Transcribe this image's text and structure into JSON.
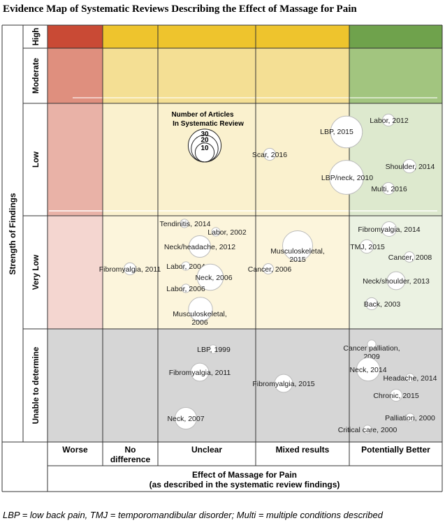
{
  "chart_data": {
    "type": "scatter",
    "title": "Evidence Map of Systematic Reviews Describing the Effect of Massage for Pain",
    "y_axis_title": "Strength of Findings",
    "x_axis_title_line1": "Effect of Massage for Pain",
    "x_axis_title_line2": "(as described in the systematic review findings)",
    "columns": [
      "Worse",
      "No difference",
      "Unclear",
      "Mixed results",
      "Potentially Better"
    ],
    "rows": [
      "High",
      "Moderate",
      "Low",
      "Very Low",
      "Unable to determine"
    ],
    "legend": {
      "title_line1": "Number of Articles",
      "title_line2": "In Systematic Review",
      "sizes": [
        30,
        20,
        10
      ]
    },
    "bubbles": [
      {
        "label": "Labor, 2012",
        "column": "Potentially Better",
        "row": "Low",
        "articles": 4
      },
      {
        "label": "LBP, 2015",
        "column": "Potentially Better",
        "row": "Low",
        "articles": 28
      },
      {
        "label": "Shoulder, 2014",
        "column": "Potentially Better",
        "row": "Low",
        "articles": 5
      },
      {
        "label": "LBP/neck, 2010",
        "column": "Potentially Better",
        "row": "Low",
        "articles": 32
      },
      {
        "label": "Multi, 2016",
        "column": "Potentially Better",
        "row": "Low",
        "articles": 4
      },
      {
        "label": "Scar, 2016",
        "column": "Mixed results",
        "row": "Low",
        "articles": 4
      },
      {
        "label": "Fibromyalgia, 2014",
        "column": "Potentially Better",
        "row": "Very Low",
        "articles": 6
      },
      {
        "label": "TMJ, 2015",
        "column": "Potentially Better",
        "row": "Very Low",
        "articles": 5
      },
      {
        "label": "Cancer, 2008",
        "column": "Potentially Better",
        "row": "Very Low",
        "articles": 3
      },
      {
        "label": "Neck/shoulder, 2013",
        "column": "Potentially Better",
        "row": "Very Low",
        "articles": 9
      },
      {
        "label": "Back, 2003",
        "column": "Potentially Better",
        "row": "Very Low",
        "articles": 4
      },
      {
        "label": "Musculoskeletal, 2015",
        "column": "Mixed results",
        "row": "Very Low",
        "articles": 25
      },
      {
        "label": "Cancer, 2006",
        "column": "Mixed results",
        "row": "Very Low",
        "articles": 3
      },
      {
        "label": "Fibromyalgia, 2011",
        "column": "No difference",
        "row": "Very Low",
        "articles": 4
      },
      {
        "label": "Tendinitis, 2014",
        "column": "Unclear",
        "row": "Very Low",
        "articles": 2
      },
      {
        "label": "Labor, 2002",
        "column": "Unclear",
        "row": "Very Low",
        "articles": 2
      },
      {
        "label": "Neck/headache, 2012",
        "column": "Unclear",
        "row": "Very Low",
        "articles": 13
      },
      {
        "label": "Labor, 2004",
        "column": "Unclear",
        "row": "Very Low",
        "articles": 2
      },
      {
        "label": "Neck, 2006",
        "column": "Unclear",
        "row": "Very Low",
        "articles": 19
      },
      {
        "label": "Labor, 2006",
        "column": "Unclear",
        "row": "Very Low",
        "articles": 2
      },
      {
        "label": "Musculoskeletal, 2006",
        "column": "Unclear",
        "row": "Very Low",
        "articles": 16
      },
      {
        "label": "LBP, 1999",
        "column": "Unclear",
        "row": "Unable to determine",
        "articles": 2
      },
      {
        "label": "Fibromyalgia, 2011",
        "column": "Unclear",
        "row": "Unable to determine",
        "articles": 9
      },
      {
        "label": "Neck, 2007",
        "column": "Unclear",
        "row": "Unable to determine",
        "articles": 13
      },
      {
        "label": "Fibromyalgia, 2015",
        "column": "Mixed results",
        "row": "Unable to determine",
        "articles": 9
      },
      {
        "label": "Cancer palliation, 2009",
        "column": "Potentially Better",
        "row": "Unable to determine",
        "articles": 2
      },
      {
        "label": "Neck, 2014",
        "column": "Potentially Better",
        "row": "Unable to determine",
        "articles": 15
      },
      {
        "label": "Headache, 2014",
        "column": "Potentially Better",
        "row": "Unable to determine",
        "articles": 2
      },
      {
        "label": "Chronic, 2015",
        "column": "Potentially Better",
        "row": "Unable to determine",
        "articles": 4
      },
      {
        "label": "Palliation, 2000",
        "column": "Potentially Better",
        "row": "Unable to determine",
        "articles": 2
      },
      {
        "label": "Critical care, 2000",
        "column": "Potentially Better",
        "row": "Unable to determine",
        "articles": 2
      }
    ],
    "footnote": "LBP = low back pain, TMJ = temporomandibular  disorder; Multi = multiple conditions described",
    "cell_colors": {
      "High": [
        "#c94a35",
        "#eec42d",
        "#eec42d",
        "#eec42d",
        "#6fa24c"
      ],
      "Moderate": [
        "#df8f7e",
        "#f4df94",
        "#f4df94",
        "#f4df94",
        "#a2c57f"
      ],
      "Low": [
        "#e9b2a7",
        "#faf1ce",
        "#faf1ce",
        "#faf1ce",
        "#dde9ce"
      ],
      "Very Low": [
        "#f4d6d0",
        "#fcf5dc",
        "#fcf5dc",
        "#fcf5dc",
        "#ebf2e2"
      ],
      "Unable to determine": [
        "#d6d6d6",
        "#d6d6d6",
        "#d6d6d6",
        "#d6d6d6",
        "#d6d6d6"
      ]
    }
  }
}
